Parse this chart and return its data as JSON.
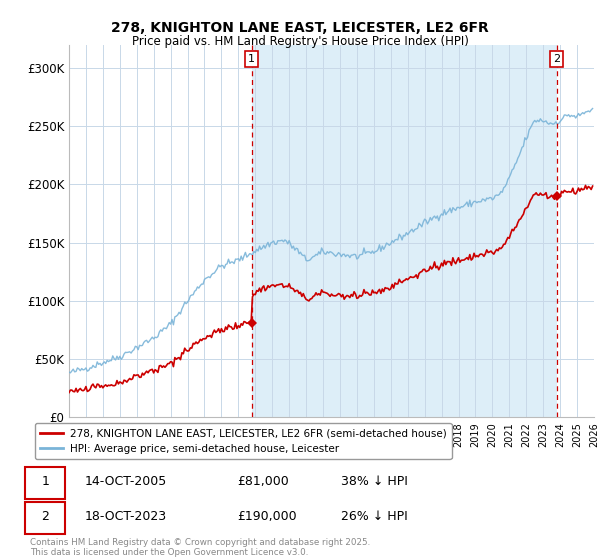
{
  "title": "278, KNIGHTON LANE EAST, LEICESTER, LE2 6FR",
  "subtitle": "Price paid vs. HM Land Registry's House Price Index (HPI)",
  "hpi_color": "#7ab4d8",
  "hpi_fill_color": "#ddeef8",
  "price_color": "#cc0000",
  "background_color": "#ffffff",
  "grid_color": "#c8d8e8",
  "ylim": [
    0,
    320000
  ],
  "yticks": [
    0,
    50000,
    100000,
    150000,
    200000,
    250000,
    300000
  ],
  "ytick_labels": [
    "£0",
    "£50K",
    "£100K",
    "£150K",
    "£200K",
    "£250K",
    "£300K"
  ],
  "legend_price_label": "278, KNIGHTON LANE EAST, LEICESTER, LE2 6FR (semi-detached house)",
  "legend_hpi_label": "HPI: Average price, semi-detached house, Leicester",
  "table_1": {
    "num": "1",
    "date": "14-OCT-2005",
    "price": "£81,000",
    "hpi": "38% ↓ HPI"
  },
  "table_2": {
    "num": "2",
    "date": "18-OCT-2023",
    "price": "£190,000",
    "hpi": "26% ↓ HPI"
  },
  "footer": "Contains HM Land Registry data © Crown copyright and database right 2025.\nThis data is licensed under the Open Government Licence v3.0.",
  "xmin": 1995,
  "xmax": 2026,
  "sale1_x": 2005.79,
  "sale1_y": 81000,
  "sale2_x": 2023.79,
  "sale2_y": 190000
}
